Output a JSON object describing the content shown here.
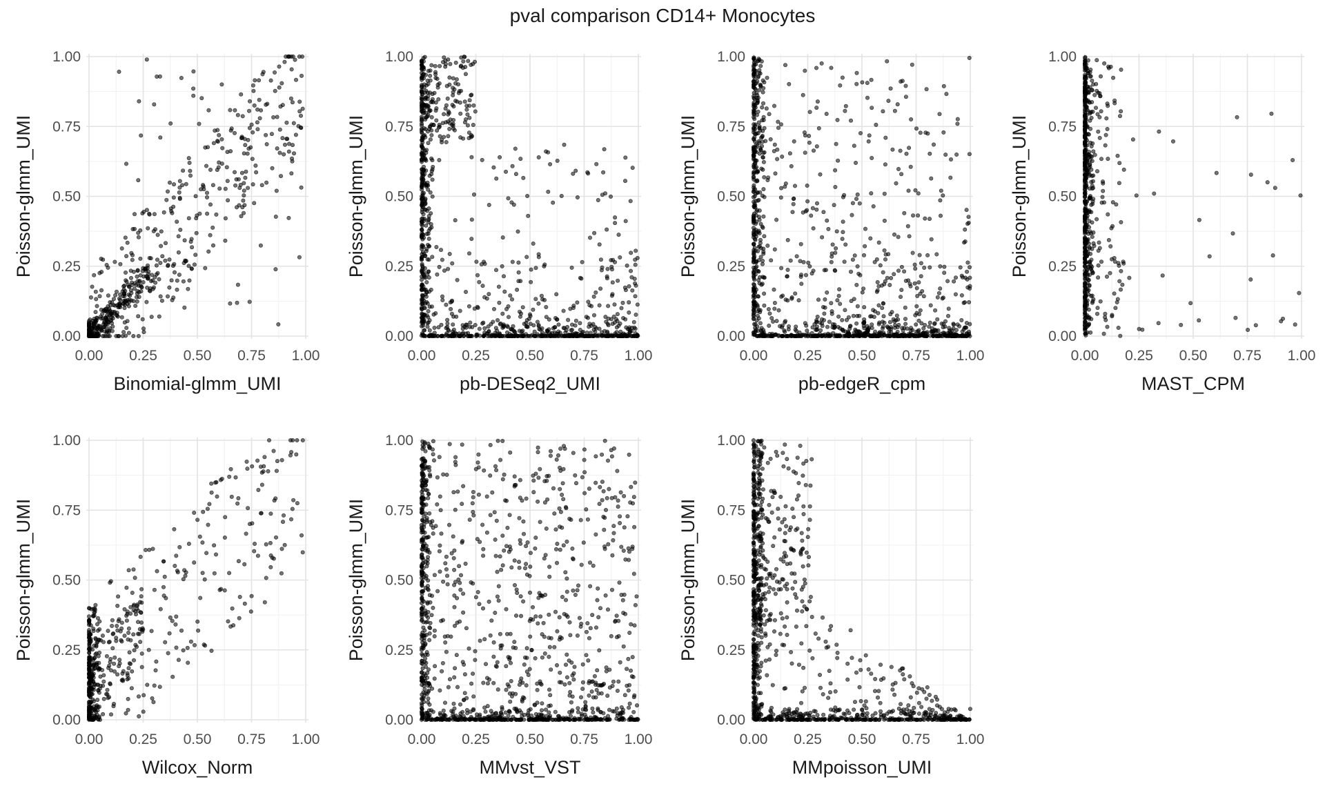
{
  "title": "pval comparison CD14+ Monocytes",
  "colors": {
    "point": "#000000",
    "grid_major": "#e3e3e3",
    "grid_minor": "#f1f1f1",
    "background": "#ffffff"
  },
  "chart_data": {
    "type": "scatter",
    "title": "pval comparison CD14+ Monocytes",
    "ylabel": "Poisson-glmm_UMI",
    "xlim": [
      0,
      1
    ],
    "ylim": [
      0,
      1
    ],
    "ticks": [
      "0.00",
      "0.25",
      "0.50",
      "0.75",
      "1.00"
    ],
    "grid": true,
    "layout": {
      "rows": 2,
      "cols": 4
    },
    "panels": [
      {
        "xlabel": "Binomial-glmm_UMI",
        "pattern": "diagonal",
        "n": 650,
        "seed": 11
      },
      {
        "xlabel": "pb-DESeq2_UMI",
        "pattern": "lshape",
        "n": 1150,
        "seed": 23
      },
      {
        "xlabel": "pb-edgeR_cpm",
        "pattern": "lshape_wide",
        "n": 1250,
        "seed": 37
      },
      {
        "xlabel": "MAST_CPM",
        "pattern": "vertical",
        "n": 650,
        "seed": 41
      },
      {
        "xlabel": "Wilcox_Norm",
        "pattern": "diagonal_sparse",
        "n": 560,
        "seed": 53
      },
      {
        "xlabel": "MMvst_VST",
        "pattern": "uniform_l",
        "n": 1250,
        "seed": 67
      },
      {
        "xlabel": "MMpoisson_UMI",
        "pattern": "lshape_left",
        "n": 1050,
        "seed": 79
      }
    ]
  }
}
